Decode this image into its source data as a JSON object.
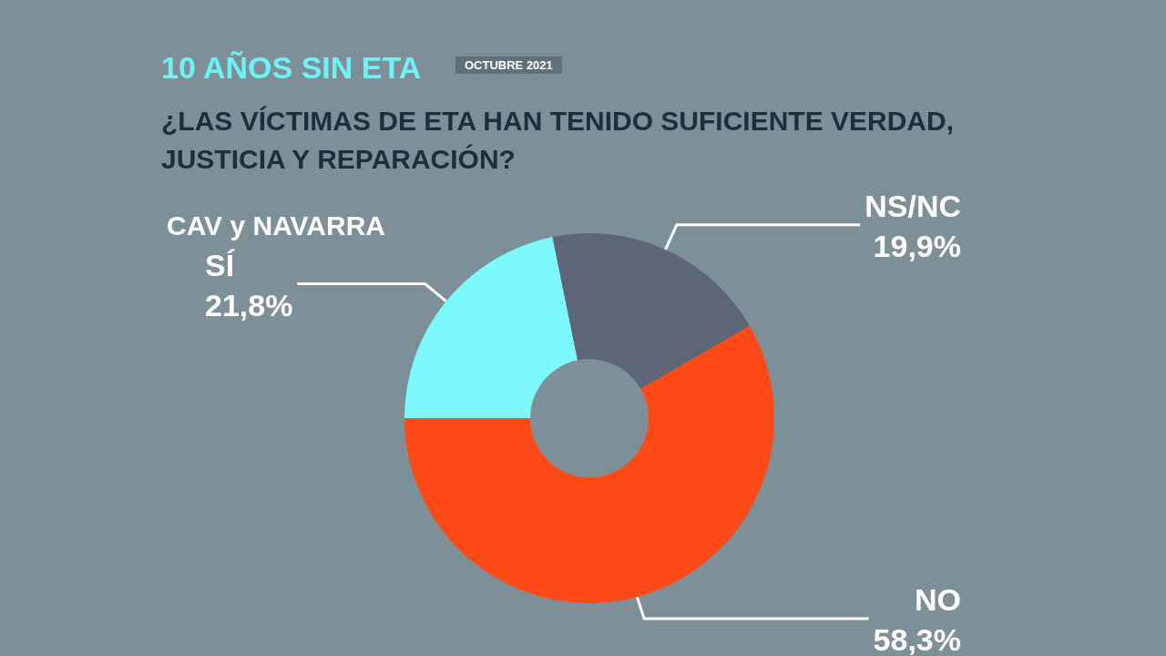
{
  "chart_data": {
    "type": "donut",
    "title": "10 AÑOS SIN ETA",
    "subtitle": "¿LAS VÍCTIMAS DE ETA HAN TENIDO SUFICIENTE VERDAD, JUSTICIA Y REPARACIÓN?",
    "annotations": [
      "OCTUBRE 2021",
      "CAV y NAVARRA"
    ],
    "categories": [
      "SÍ",
      "NS/NC",
      "NO"
    ],
    "values": [
      21.8,
      19.9,
      58.3
    ],
    "value_labels": [
      "21,8%",
      "19,9%",
      "58,3%"
    ],
    "colors": [
      "#7ef9fb",
      "#5d6677",
      "#fd4a16"
    ],
    "legend": false
  }
}
